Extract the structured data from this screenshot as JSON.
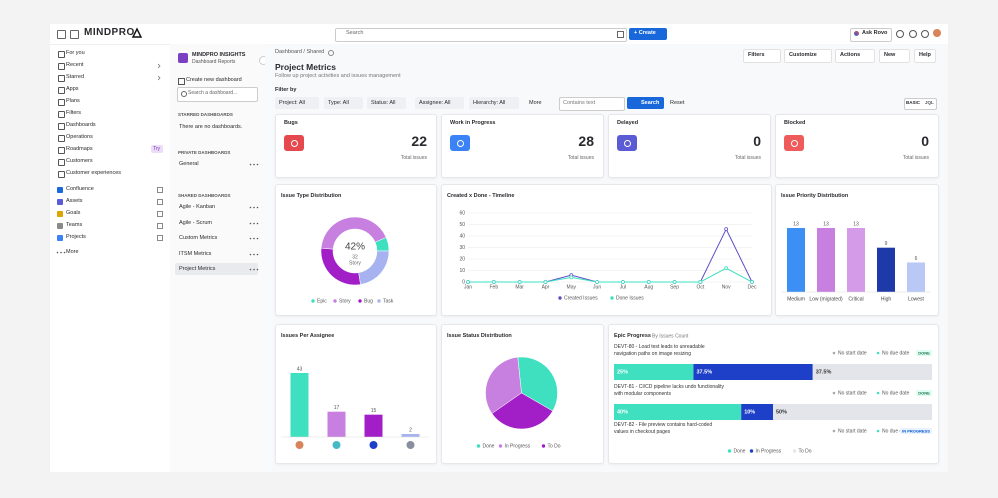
{
  "topbar": {
    "logo": "MINDPRO",
    "search": "Search",
    "create": "+ Create",
    "ask": "Ask Rovo"
  },
  "nav": {
    "items": [
      "For you",
      "Recent",
      "Starred",
      "Apps",
      "Plans",
      "Filters",
      "Dashboards",
      "Operations",
      "Roadmaps",
      "Customers",
      "Customer experiences"
    ],
    "badge": "Try",
    "apps": [
      "Confluence",
      "Assets",
      "Goals",
      "Teams",
      "Projects"
    ],
    "more": "More"
  },
  "sidebar": {
    "title": "MINDPRO INSIGHTS",
    "subtitle": "Dashboard Reports",
    "create": "Create new dashboard",
    "search": "Search a dashboard...",
    "sections": [
      {
        "heading": "STARRED DASHBOARDS",
        "empty": "There are no dashboards."
      },
      {
        "heading": "PRIVATE DASHBOARDS",
        "items": [
          "General"
        ]
      },
      {
        "heading": "SHARED DASHBOARDS",
        "items": [
          "Agile - Kanban",
          "Agile - Scrum",
          "Custom Metrics",
          "ITSM Metrics",
          "Project Metrics"
        ]
      }
    ]
  },
  "header": {
    "breadcrumb": "Dashboard / Shared",
    "title": "Project Metrics",
    "subtitle": "Follow up project activities and issues management",
    "actions": [
      "Filters",
      "Customize",
      "Actions",
      "New",
      "Help"
    ]
  },
  "filters": {
    "label": "Filter by",
    "dropdowns": [
      "Project: All",
      "Type: All",
      "Status: All",
      "Assignee: All",
      "Hierarchy: All"
    ],
    "more": "More",
    "placeholder": "Contains text",
    "search": "Search",
    "reset": "Reset",
    "modes": [
      "BASIC",
      "JQL"
    ]
  },
  "stats": [
    {
      "title": "Bugs",
      "value": 22,
      "caption": "Total issues",
      "color": "#e5484d"
    },
    {
      "title": "Work in Progress",
      "value": 28,
      "caption": "Total issues",
      "color": "#3b82f6"
    },
    {
      "title": "Delayed",
      "value": 0,
      "caption": "Total issues",
      "color": "#5b5bd6"
    },
    {
      "title": "Blocked",
      "value": 0,
      "caption": "Total issues",
      "color": "#ef5a5a"
    }
  ],
  "chart_data": [
    {
      "type": "donut",
      "title": "Issue Type Distribution",
      "categories": [
        "Epic",
        "Story",
        "Bug",
        "Task"
      ],
      "values": [
        5,
        32,
        22,
        17
      ],
      "colors": [
        "#3ee0c0",
        "#c77fe0",
        "#a21fc8",
        "#a7b3f0"
      ],
      "center_label": "42%"
    },
    {
      "type": "line",
      "title": "Created x Done - Timeline",
      "x": [
        "Jan",
        "Feb",
        "Mar",
        "Apr",
        "May",
        "Jun",
        "Jul",
        "Aug",
        "Sep",
        "Oct",
        "Nov",
        "Dec"
      ],
      "ylim": [
        0,
        60
      ],
      "yticks": [
        0,
        10,
        20,
        30,
        40,
        50,
        60
      ],
      "grid": true,
      "series": [
        {
          "name": "Created Issues",
          "color": "#5b4fc7",
          "values": [
            0,
            0,
            0,
            0,
            6,
            0,
            0,
            0,
            0,
            0,
            46,
            0
          ]
        },
        {
          "name": "Done Issues",
          "color": "#3ee0c0",
          "values": [
            0,
            0,
            0,
            0,
            4,
            0,
            0,
            0,
            0,
            0,
            12,
            0
          ]
        }
      ]
    },
    {
      "type": "bar",
      "title": "Issue Priority Distribution",
      "categories": [
        "Medium",
        "Low (migrated)",
        "Critical",
        "High",
        "Lowest"
      ],
      "values": [
        13,
        13,
        13,
        9,
        6
      ],
      "colors": [
        "#3b8ff5",
        "#c77fe0",
        "#d49be8",
        "#1e3aa8",
        "#b9c8f5"
      ]
    },
    {
      "type": "bar",
      "title": "Issues Per Assignee",
      "categories": [
        null,
        null,
        null,
        null
      ],
      "values": [
        43,
        17,
        15,
        2
      ],
      "colors": [
        "#3ee0c0",
        "#c77fe0",
        "#a21fc8",
        "#a7b3f0"
      ]
    },
    {
      "type": "pie",
      "title": "Issue Status Distribution",
      "categories": [
        "Done",
        "In Progress",
        "To Do"
      ],
      "values": [
        35,
        33,
        32
      ],
      "colors": [
        "#3ee0c0",
        "#c77fe0",
        "#a21fc8"
      ]
    },
    {
      "type": "progress",
      "title": "Epic Progress",
      "subtitle": "By Issues Count",
      "categories": [
        "DEVT-80 - Load test leads to unreadable navigation paths on image resizing",
        "DEVT-81 - CI/CD pipeline lacks undo functionality with modular components",
        "DEVT-82 - File preview contains hard-coded values in checkout pages"
      ],
      "start_labels": [
        "No start date",
        "No start date",
        "No start date"
      ],
      "due_labels": [
        "No due date",
        "No due date",
        "No due date"
      ],
      "status_labels": [
        "DONE",
        "DONE",
        "IN PROGRESS"
      ],
      "series": [
        {
          "name": "Done",
          "color": "#3ee0c0",
          "values": [
            25,
            40,
            null
          ],
          "value_labels": [
            "25%",
            "40%",
            null
          ]
        },
        {
          "name": "In Progress",
          "color": "#1e40c8",
          "values": [
            37.5,
            10,
            null
          ],
          "value_labels": [
            "37.5%",
            "10%",
            null
          ]
        },
        {
          "name": "To Do",
          "color": "#e3e5ea",
          "values": [
            37.5,
            50,
            null
          ],
          "value_labels": [
            "37.5%",
            "50%",
            null
          ]
        }
      ]
    }
  ]
}
